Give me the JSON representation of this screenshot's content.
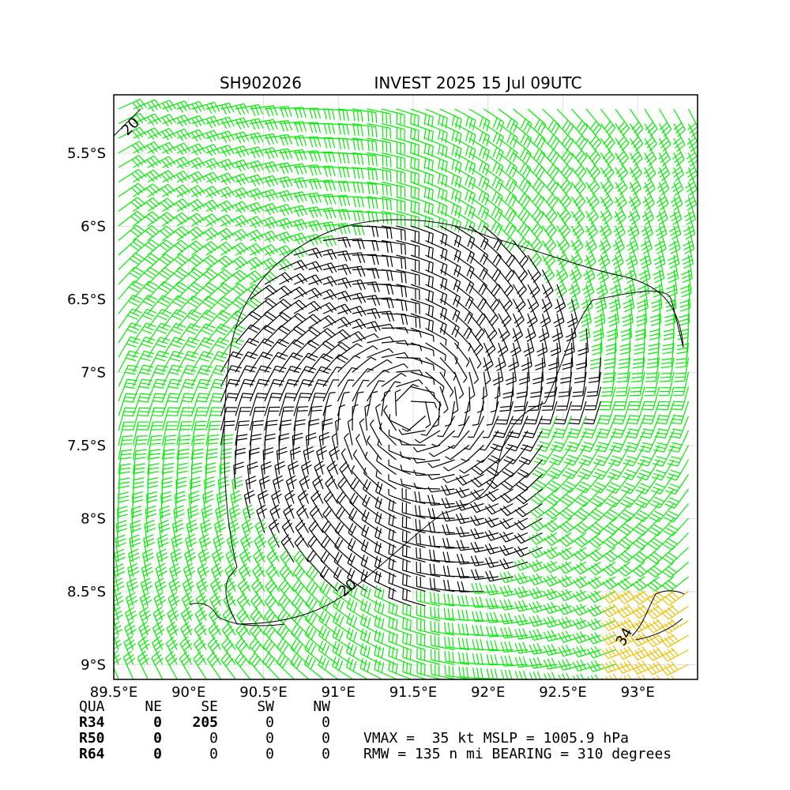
{
  "chart_data": {
    "type": "wind-barb-map",
    "title_left": "SH902026",
    "title_right": "INVEST 2025 15 Jul 09UTC",
    "x_ticks": [
      "89.5°E",
      "90°E",
      "90.5°E",
      "91°E",
      "91.5°E",
      "92°E",
      "92.5°E",
      "93°E"
    ],
    "y_ticks": [
      "5.5°S",
      "6°S",
      "6.5°S",
      "7°S",
      "7.5°S",
      "8°S",
      "8.5°S",
      "9°S"
    ],
    "x_tick_values": [
      89.5,
      90.0,
      90.5,
      91.0,
      91.5,
      92.0,
      92.5,
      93.0
    ],
    "y_tick_values": [
      -5.5,
      -6.0,
      -6.5,
      -7.0,
      -7.5,
      -8.0,
      -8.5,
      -9.0
    ],
    "xlim": [
      89.5,
      93.4
    ],
    "ylim": [
      -9.1,
      -5.1
    ],
    "grid": true,
    "center": {
      "lon": 91.5,
      "lat": -7.25
    },
    "barb_colors": {
      "below_20": "#000000",
      "from_20_to_34": "#00ee00",
      "from_34_to_50": "#f0c000"
    },
    "contours": [
      {
        "label": "20",
        "color": "#000000"
      },
      {
        "label": "20",
        "color": "#000000"
      },
      {
        "label": "34",
        "color": "#000000"
      }
    ],
    "wind_radii_table": {
      "header": [
        "QUA",
        "NE",
        "SE",
        "SW",
        "NW"
      ],
      "rows": [
        {
          "label": "R34",
          "values": [
            "0",
            "205",
            "0",
            "0"
          ]
        },
        {
          "label": "R50",
          "values": [
            "0",
            "0",
            "0",
            "0"
          ]
        },
        {
          "label": "R64",
          "values": [
            "0",
            "0",
            "0",
            "0"
          ]
        }
      ]
    },
    "stats_line1": "VMAX =  35 kt MSLP = 1005.9 hPa",
    "stats_line2": "RMW = 135 n mi BEARING = 310 degrees"
  }
}
